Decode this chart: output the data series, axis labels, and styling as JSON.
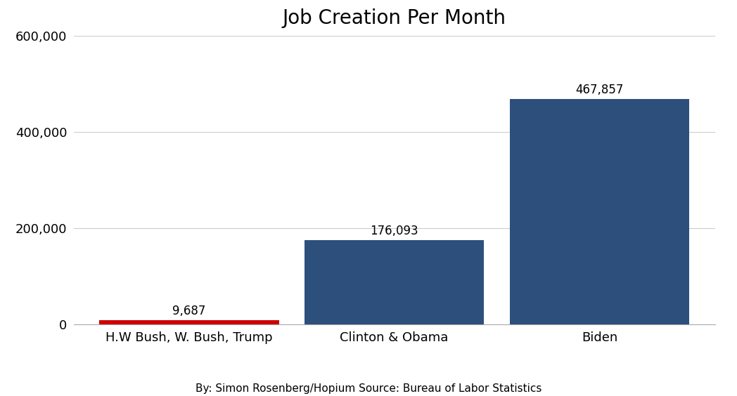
{
  "title": "Job Creation Per Month",
  "categories": [
    "H.W Bush, W. Bush, Trump",
    "Clinton & Obama",
    "Biden"
  ],
  "values": [
    9687,
    176093,
    467857
  ],
  "bar_colors": [
    "#cc0000",
    "#2d4f7c",
    "#2d4f7c"
  ],
  "value_labels": [
    "9,687",
    "176,093",
    "467,857"
  ],
  "ylim": [
    0,
    600000
  ],
  "yticks": [
    0,
    200000,
    400000,
    600000
  ],
  "ytick_labels": [
    "0",
    "200,000",
    "400,000",
    "600,000"
  ],
  "background_color": "#ffffff",
  "grid_color": "#cccccc",
  "footnote": "By: Simon Rosenberg/Hopium Source: Bureau of Labor Statistics",
  "title_fontsize": 20,
  "label_fontsize": 12,
  "tick_fontsize": 13,
  "footnote_fontsize": 11,
  "bar_width": 0.28,
  "x_positions": [
    0.18,
    0.5,
    0.82
  ]
}
